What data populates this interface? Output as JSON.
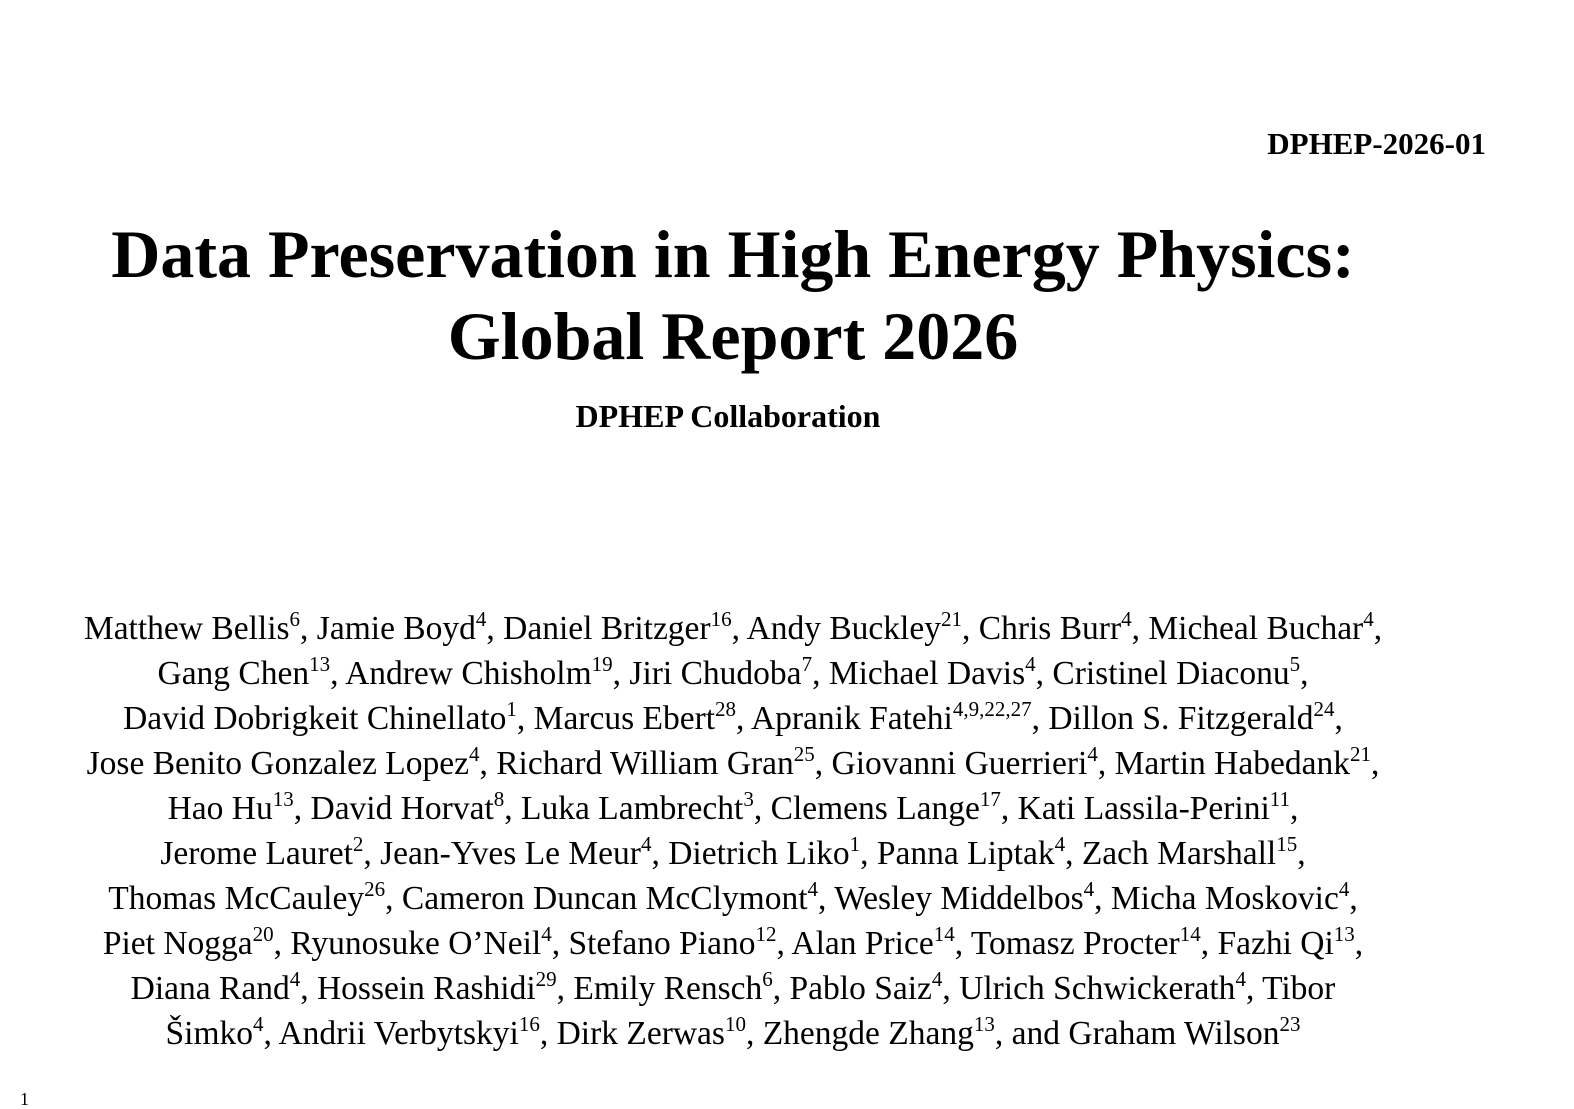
{
  "report_number": "DPHEP-2026-01",
  "title_lines": [
    "Data Preservation in High Energy Physics:",
    "Global Report 2026"
  ],
  "collaboration": "DPHEP Collaboration",
  "author_lines": [
    [
      {
        "name": "Matthew Bellis",
        "aff": "6",
        "sep": ", "
      },
      {
        "name": "Jamie Boyd",
        "aff": "4",
        "sep": ", "
      },
      {
        "name": "Daniel Britzger",
        "aff": "16",
        "sep": ", "
      },
      {
        "name": "Andy Buckley",
        "aff": "21",
        "sep": ", "
      },
      {
        "name": "Chris Burr",
        "aff": "4",
        "sep": ", "
      },
      {
        "name": "Micheal Buchar",
        "aff": "4",
        "sep": ","
      }
    ],
    [
      {
        "name": "Gang Chen",
        "aff": "13",
        "sep": ", "
      },
      {
        "name": "Andrew Chisholm",
        "aff": "19",
        "sep": ", "
      },
      {
        "name": "Jiri Chudoba",
        "aff": "7",
        "sep": ", "
      },
      {
        "name": "Michael Davis",
        "aff": "4",
        "sep": ", "
      },
      {
        "name": "Cristinel Diaconu",
        "aff": "5",
        "sep": ","
      }
    ],
    [
      {
        "name": "David Dobrigkeit Chinellato",
        "aff": "1",
        "sep": ", "
      },
      {
        "name": "Marcus Ebert",
        "aff": "28",
        "sep": ", "
      },
      {
        "name": "Apranik Fatehi",
        "aff": "4,9,22,27",
        "sep": ", "
      },
      {
        "name": "Dillon S. Fitzgerald",
        "aff": "24",
        "sep": ","
      }
    ],
    [
      {
        "name": "Jose Benito Gonzalez Lopez",
        "aff": "4",
        "sep": ", "
      },
      {
        "name": "Richard William Gran",
        "aff": "25",
        "sep": ", "
      },
      {
        "name": "Giovanni Guerrieri",
        "aff": "4",
        "sep": ", "
      },
      {
        "name": "Martin Habedank",
        "aff": "21",
        "sep": ","
      }
    ],
    [
      {
        "name": "Hao Hu",
        "aff": "13",
        "sep": ", "
      },
      {
        "name": "David Horvat",
        "aff": "8",
        "sep": ", "
      },
      {
        "name": "Luka Lambrecht",
        "aff": "3",
        "sep": ", "
      },
      {
        "name": "Clemens Lange",
        "aff": "17",
        "sep": ", "
      },
      {
        "name": "Kati Lassila-Perini",
        "aff": "11",
        "sep": ","
      }
    ],
    [
      {
        "name": "Jerome Lauret",
        "aff": "2",
        "sep": ", "
      },
      {
        "name": "Jean-Yves Le Meur",
        "aff": "4",
        "sep": ", "
      },
      {
        "name": "Dietrich Liko",
        "aff": "1",
        "sep": ", "
      },
      {
        "name": "Panna Liptak",
        "aff": "4",
        "sep": ", "
      },
      {
        "name": "Zach Marshall",
        "aff": "15",
        "sep": ","
      }
    ],
    [
      {
        "name": "Thomas McCauley",
        "aff": "26",
        "sep": ", "
      },
      {
        "name": "Cameron Duncan McClymont",
        "aff": "4",
        "sep": ", "
      },
      {
        "name": "Wesley Middelbos",
        "aff": "4",
        "sep": ", "
      },
      {
        "name": "Micha Moskovic",
        "aff": "4",
        "sep": ","
      }
    ],
    [
      {
        "name": "Piet Nogga",
        "aff": "20",
        "sep": ", "
      },
      {
        "name": "Ryunosuke O’Neil",
        "aff": "4",
        "sep": ", "
      },
      {
        "name": "Stefano Piano",
        "aff": "12",
        "sep": ", "
      },
      {
        "name": "Alan Price",
        "aff": "14",
        "sep": ", "
      },
      {
        "name": "Tomasz Procter",
        "aff": "14",
        "sep": ", "
      },
      {
        "name": "Fazhi Qi",
        "aff": "13",
        "sep": ","
      }
    ],
    [
      {
        "name": "Diana Rand",
        "aff": "4",
        "sep": ", "
      },
      {
        "name": "Hossein Rashidi",
        "aff": "29",
        "sep": ", "
      },
      {
        "name": "Emily Rensch",
        "aff": "6",
        "sep": ", "
      },
      {
        "name": "Pablo Saiz",
        "aff": "4",
        "sep": ", "
      },
      {
        "name": "Ulrich Schwickerath",
        "aff": "4",
        "sep": ", Tibor"
      }
    ],
    [
      {
        "name": "Šimko",
        "aff": "4",
        "sep": ", "
      },
      {
        "name": "Andrii Verbytskyi",
        "aff": "16",
        "sep": ", "
      },
      {
        "name": "Dirk Zerwas",
        "aff": "10",
        "sep": ", "
      },
      {
        "name": "Zhengde Zhang",
        "aff": "13",
        "sep": ", and "
      },
      {
        "name": "Graham Wilson",
        "aff": "23",
        "sep": ""
      }
    ]
  ],
  "footnote_marker": "1"
}
